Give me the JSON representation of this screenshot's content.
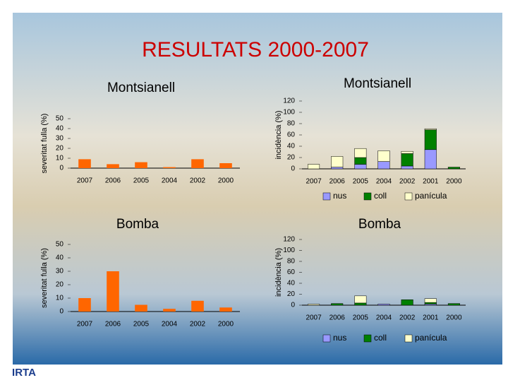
{
  "title": "RESULTATS 2000-2007",
  "logo": "IRTA",
  "chart_data": [
    {
      "type": "bar",
      "title": "Montsianell",
      "y_label": "severitat fulla (%)",
      "categories": [
        "2007",
        "2006",
        "2005",
        "2004",
        "2002",
        "2000"
      ],
      "values": [
        9,
        4,
        6,
        1,
        9,
        5
      ],
      "color": "#ff6600",
      "ylim": [
        0,
        50
      ],
      "yticks": [
        0,
        10,
        20,
        30,
        40,
        50
      ]
    },
    {
      "type": "stacked-bar",
      "title": "Montsianell",
      "y_label": "incidència (%)",
      "categories": [
        "2007",
        "2006",
        "2005",
        "2004",
        "2002",
        "2001",
        "2000"
      ],
      "series": [
        {
          "name": "nus",
          "color": "#9999ff",
          "values": [
            0,
            3,
            8,
            13,
            5,
            34,
            0
          ]
        },
        {
          "name": "coll",
          "color": "#008000",
          "values": [
            0,
            0,
            12,
            0,
            22,
            35,
            3
          ]
        },
        {
          "name": "panícula",
          "color": "#ffffcc",
          "values": [
            8,
            19,
            16,
            19,
            4,
            2,
            0
          ]
        }
      ],
      "ylim": [
        0,
        120
      ],
      "yticks": [
        0,
        20,
        40,
        60,
        80,
        100,
        120
      ]
    },
    {
      "type": "bar",
      "title": "Bomba",
      "y_label": "severitat fulla (%)",
      "categories": [
        "2007",
        "2006",
        "2005",
        "2004",
        "2002",
        "2000"
      ],
      "values": [
        10,
        30,
        5,
        2,
        8,
        3
      ],
      "color": "#ff6600",
      "ylim": [
        0,
        50
      ],
      "yticks": [
        0,
        10,
        20,
        30,
        40,
        50
      ]
    },
    {
      "type": "stacked-bar",
      "title": "Bomba",
      "y_label": "incidència (%)",
      "categories": [
        "2007",
        "2006",
        "2005",
        "2004",
        "2002",
        "2001",
        "2000"
      ],
      "series": [
        {
          "name": "nus",
          "color": "#9999ff",
          "values": [
            0,
            0,
            0,
            2,
            0,
            2,
            0
          ]
        },
        {
          "name": "coll",
          "color": "#008000",
          "values": [
            0,
            3,
            4,
            0,
            10,
            3,
            3
          ]
        },
        {
          "name": "panícula",
          "color": "#ffffcc",
          "values": [
            2,
            0,
            13,
            0,
            0,
            7,
            0
          ]
        }
      ],
      "ylim": [
        0,
        120
      ],
      "yticks": [
        0,
        20,
        40,
        60,
        80,
        100,
        120
      ]
    }
  ]
}
